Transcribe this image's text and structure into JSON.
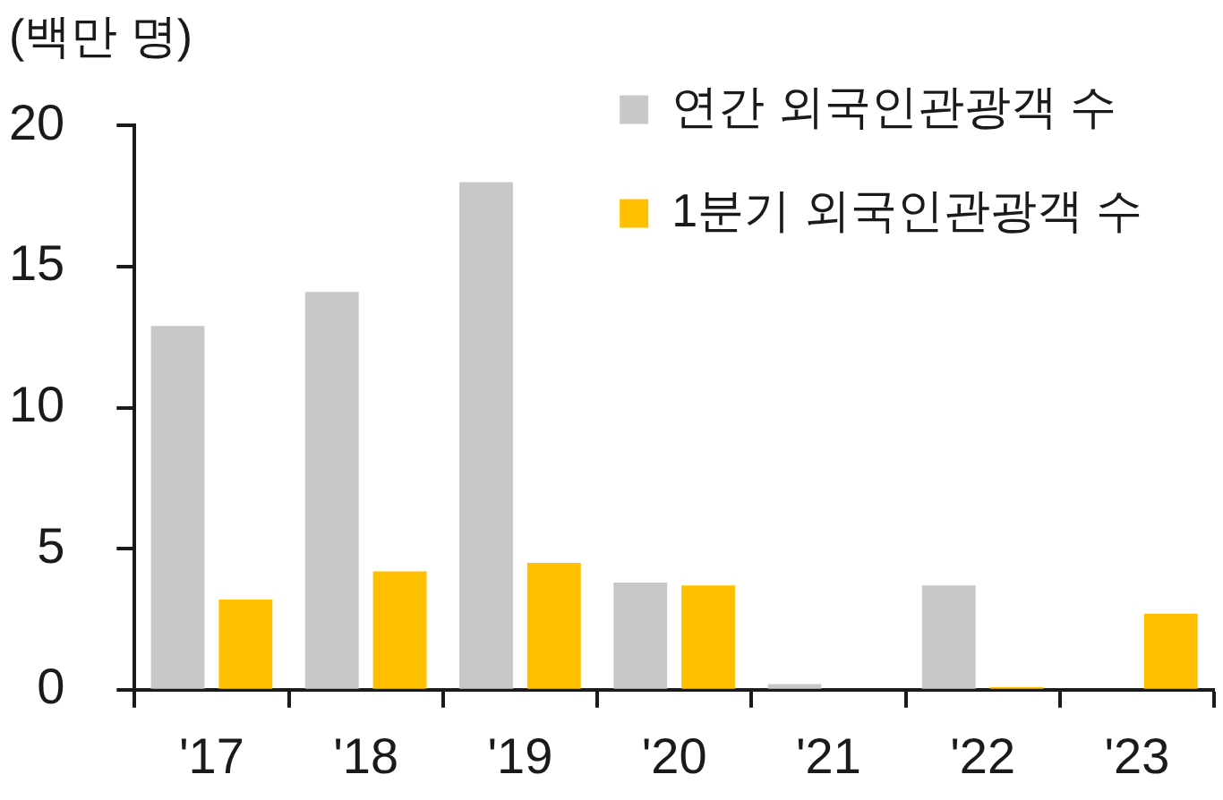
{
  "chart_data": {
    "type": "bar",
    "ylabel": "(백만 명)",
    "categories": [
      "'17",
      "'18",
      "'19",
      "'20",
      "'21",
      "'22",
      "'23"
    ],
    "series": [
      {
        "name": "연간 외국인관광객 수",
        "color": "#c8c8c8",
        "values": [
          12.9,
          14.1,
          18.0,
          3.8,
          0.2,
          3.7,
          null
        ]
      },
      {
        "name": "1분기 외국인관광객 수",
        "color": "#ffc000",
        "values": [
          3.2,
          4.2,
          4.5,
          3.7,
          null,
          0.1,
          2.7
        ]
      }
    ],
    "ylim": [
      0,
      20
    ],
    "yticks": [
      0,
      5,
      10,
      15,
      20
    ],
    "legend": "top right"
  }
}
